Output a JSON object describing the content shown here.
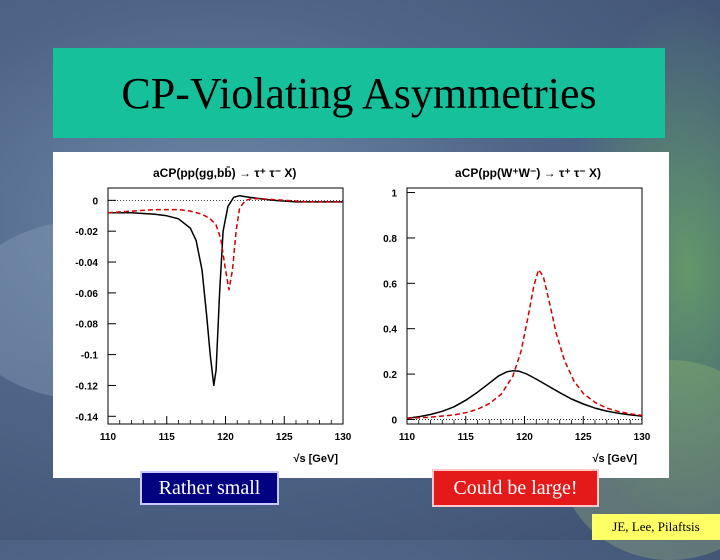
{
  "slide": {
    "title": "CP-Violating Asymmetries",
    "callout_left": "Rather small",
    "callout_right": "Could be large!",
    "credit": "JE, Lee, Pilaftsis",
    "colors": {
      "title_bg": "#16c09a",
      "callout_left_bg": "#000080",
      "callout_right_bg": "#e41a1a",
      "credit_bg": "#ffff66"
    }
  },
  "chart_data": [
    {
      "type": "line",
      "title": "aCP(pp(gg,bb̄) → τ⁺ τ⁻ X)",
      "xlabel": "√s [GeV]",
      "ylabel": "",
      "xlim": [
        110,
        130
      ],
      "ylim": [
        -0.145,
        0.008
      ],
      "xticks": [
        "110",
        "115",
        "120",
        "125",
        "130"
      ],
      "yticks": [
        "0",
        "-0.02",
        "-0.04",
        "-0.06",
        "-0.08",
        "-0.1",
        "-0.12",
        "-0.14"
      ],
      "ytick_values": [
        0,
        -0.02,
        -0.04,
        -0.06,
        -0.08,
        -0.1,
        -0.12,
        -0.14
      ],
      "reference_line": 0,
      "series": [
        {
          "color": "#000000",
          "style": "solid",
          "x": [
            110,
            112,
            114,
            115,
            116,
            117,
            117.5,
            118,
            118.4,
            118.7,
            119.0,
            119.2,
            119.5,
            119.8,
            120.2,
            120.7,
            121.2,
            122,
            124,
            126,
            128,
            130
          ],
          "y": [
            -0.008,
            -0.008,
            -0.009,
            -0.01,
            -0.012,
            -0.018,
            -0.026,
            -0.045,
            -0.075,
            -0.1,
            -0.12,
            -0.11,
            -0.06,
            -0.02,
            -0.004,
            0.002,
            0.003,
            0.002,
            0.0,
            -0.001,
            -0.001,
            -0.001
          ]
        },
        {
          "color": "#cc0000",
          "style": "dashed",
          "x": [
            110,
            112,
            114,
            115,
            116,
            117,
            118,
            118.7,
            119.2,
            119.6,
            120.0,
            120.3,
            120.6,
            120.9,
            121.2,
            121.7,
            122.2,
            123,
            125,
            127,
            130
          ],
          "y": [
            -0.008,
            -0.007,
            -0.006,
            -0.006,
            -0.006,
            -0.007,
            -0.009,
            -0.012,
            -0.016,
            -0.025,
            -0.045,
            -0.058,
            -0.045,
            -0.02,
            -0.005,
            0.0,
            0.001,
            0.001,
            0.0,
            -0.001,
            -0.001
          ]
        }
      ]
    },
    {
      "type": "line",
      "title": "aCP(pp(W⁺W⁻) → τ⁺ τ⁻ X)",
      "xlabel": "√s [GeV]",
      "ylabel": "",
      "xlim": [
        110,
        130
      ],
      "ylim": [
        -0.02,
        1.02
      ],
      "xticks": [
        "110",
        "115",
        "120",
        "125",
        "130"
      ],
      "yticks": [
        "1",
        "0.8",
        "0.6",
        "0.4",
        "0.2",
        "0"
      ],
      "ytick_values": [
        1,
        0.8,
        0.6,
        0.4,
        0.2,
        0
      ],
      "reference_line": 0,
      "series": [
        {
          "color": "#000000",
          "style": "solid",
          "x": [
            110,
            111,
            112,
            113,
            114,
            115,
            116,
            117,
            117.8,
            118.5,
            119,
            119.5,
            120.2,
            121,
            122,
            123,
            124,
            125,
            126,
            127,
            128,
            129,
            130
          ],
          "y": [
            0.005,
            0.012,
            0.022,
            0.036,
            0.056,
            0.085,
            0.12,
            0.16,
            0.192,
            0.21,
            0.215,
            0.213,
            0.2,
            0.178,
            0.148,
            0.118,
            0.09,
            0.068,
            0.05,
            0.037,
            0.027,
            0.02,
            0.015
          ]
        },
        {
          "color": "#cc0000",
          "style": "dashed",
          "x": [
            110,
            112,
            114,
            115,
            116,
            117,
            118,
            119,
            119.7,
            120.3,
            120.8,
            121.2,
            121.6,
            122.1,
            122.7,
            123.4,
            124.2,
            125,
            126,
            127,
            128,
            129,
            130
          ],
          "y": [
            0.005,
            0.01,
            0.02,
            0.03,
            0.045,
            0.07,
            0.11,
            0.19,
            0.3,
            0.45,
            0.59,
            0.66,
            0.63,
            0.52,
            0.38,
            0.26,
            0.17,
            0.115,
            0.075,
            0.05,
            0.035,
            0.025,
            0.018
          ]
        }
      ]
    }
  ]
}
